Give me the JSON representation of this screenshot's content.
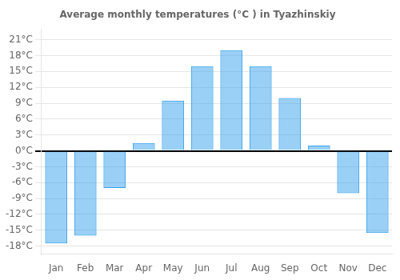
{
  "chart_data": {
    "type": "bar",
    "title": "Average monthly temperatures (°C ) in Tyazhinskiy",
    "categories": [
      "Jan",
      "Feb",
      "Mar",
      "Apr",
      "May",
      "Jun",
      "Jul",
      "Aug",
      "Sep",
      "Oct",
      "Nov",
      "Dec"
    ],
    "values": [
      -17.5,
      -16.0,
      -7.0,
      1.5,
      9.5,
      16.0,
      19.0,
      16.0,
      10.0,
      1.0,
      -8.0,
      -15.5
    ],
    "ylim": [
      -19.5,
      23
    ],
    "yticks": [
      {
        "value": -18,
        "label": "-18°C"
      },
      {
        "value": -15,
        "label": "-15°C"
      },
      {
        "value": -12,
        "label": "-12°C"
      },
      {
        "value": -9,
        "label": "-9°C"
      },
      {
        "value": -6,
        "label": "-6°C"
      },
      {
        "value": -3,
        "label": "-3°C"
      },
      {
        "value": 0,
        "label": "0°C"
      },
      {
        "value": 3,
        "label": "3°C"
      },
      {
        "value": 6,
        "label": "6°C"
      },
      {
        "value": 9,
        "label": "9°C"
      },
      {
        "value": 12,
        "label": "12°C"
      },
      {
        "value": 15,
        "label": "15°C"
      },
      {
        "value": 18,
        "label": "18°C"
      },
      {
        "value": 21,
        "label": "21°C"
      }
    ],
    "grid": true
  }
}
